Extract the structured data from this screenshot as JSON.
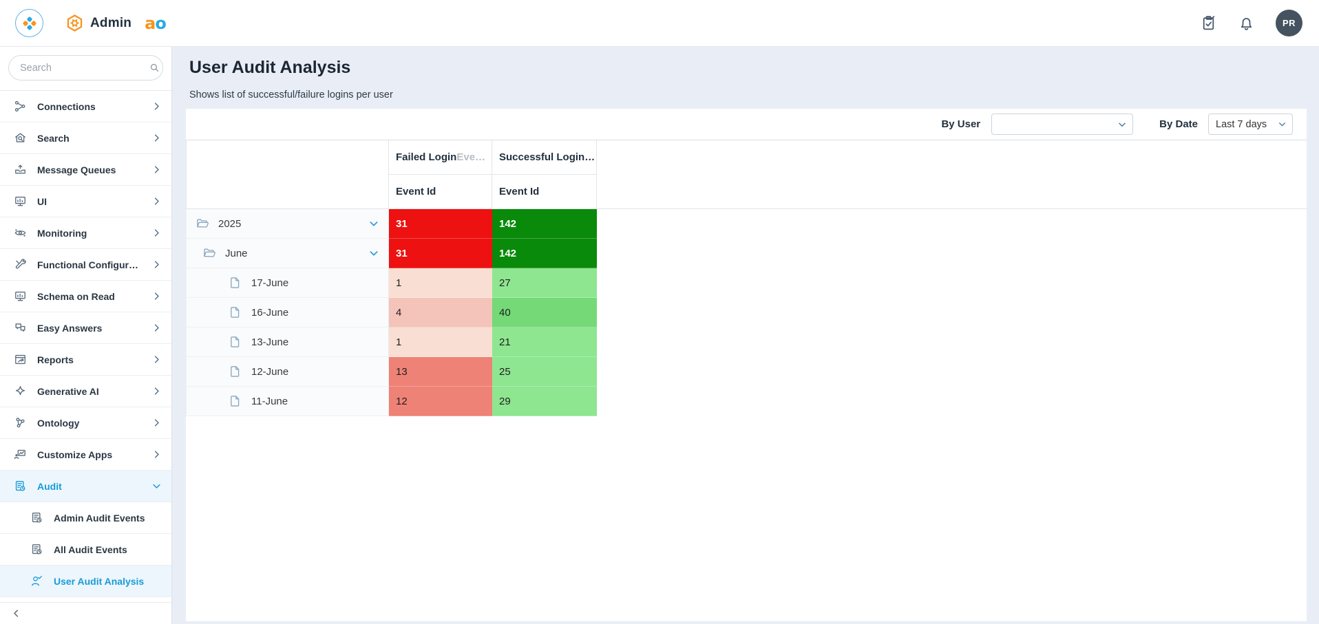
{
  "topbar": {
    "app_label": "Admin",
    "logo_letter_a": "a",
    "logo_letter_o": "o",
    "avatar_initials": "PR"
  },
  "sidebar": {
    "search_placeholder": "Search",
    "items": [
      {
        "label": "Connections",
        "icon": "connections"
      },
      {
        "label": "Search",
        "icon": "search-nav"
      },
      {
        "label": "Message Queues",
        "icon": "message-queues"
      },
      {
        "label": "UI",
        "icon": "ui"
      },
      {
        "label": "Monitoring",
        "icon": "monitoring"
      },
      {
        "label": "Functional Configurati...",
        "icon": "functional-config"
      },
      {
        "label": "Schema on Read",
        "icon": "schema"
      },
      {
        "label": "Easy Answers",
        "icon": "easy-answers"
      },
      {
        "label": "Reports",
        "icon": "reports"
      },
      {
        "label": "Generative AI",
        "icon": "generative-ai"
      },
      {
        "label": "Ontology",
        "icon": "ontology"
      },
      {
        "label": "Customize Apps",
        "icon": "customize-apps"
      },
      {
        "label": "Audit",
        "icon": "audit",
        "active": true,
        "expanded": true
      }
    ],
    "audit_children": [
      {
        "label": "Admin Audit Events",
        "icon": "audit"
      },
      {
        "label": "All Audit Events",
        "icon": "audit"
      },
      {
        "label": "User Audit Analysis",
        "icon": "user-check",
        "active": true
      }
    ]
  },
  "page": {
    "title": "User Audit Analysis",
    "subtitle": "Shows list of successful/failure logins per user"
  },
  "filters": {
    "by_user_label": "By User",
    "by_user_value": "",
    "by_date_label": "By Date",
    "by_date_value": "Last 7 days"
  },
  "table": {
    "col_failed_header": "Failed Login ",
    "col_failed_header_truncated": "Eve…",
    "col_success_header": "Successful Login…",
    "sub_header_failed": "Event Id",
    "sub_header_success": "Event Id",
    "rows": [
      {
        "label": "2025",
        "level": 0,
        "node": "folder",
        "expanded": true,
        "failed": "31",
        "success": "142",
        "failed_bg": "#ed1111",
        "success_bg": "#0a8a0a",
        "text_color": "#ffffff",
        "bold": true
      },
      {
        "label": "June",
        "level": 1,
        "node": "folder",
        "expanded": true,
        "failed": "31",
        "success": "142",
        "failed_bg": "#ed1111",
        "success_bg": "#0a8a0a",
        "text_color": "#ffffff",
        "bold": true
      },
      {
        "label": "17-June",
        "level": 2,
        "node": "file",
        "expanded": false,
        "failed": "1",
        "success": "27",
        "failed_bg": "#f9ded3",
        "success_bg": "#8ee690",
        "text_color": "#1f1f1f",
        "bold": false
      },
      {
        "label": "16-June",
        "level": 2,
        "node": "file",
        "expanded": false,
        "failed": "4",
        "success": "40",
        "failed_bg": "#f4c3ba",
        "success_bg": "#74d976",
        "text_color": "#1f1f1f",
        "bold": false
      },
      {
        "label": "13-June",
        "level": 2,
        "node": "file",
        "expanded": false,
        "failed": "1",
        "success": "21",
        "failed_bg": "#f9ded3",
        "success_bg": "#8ee690",
        "text_color": "#1f1f1f",
        "bold": false
      },
      {
        "label": "12-June",
        "level": 2,
        "node": "file",
        "expanded": false,
        "failed": "13",
        "success": "25",
        "failed_bg": "#ee8276",
        "success_bg": "#8ee690",
        "text_color": "#1f1f1f",
        "bold": false
      },
      {
        "label": "11-June",
        "level": 2,
        "node": "file",
        "expanded": false,
        "failed": "12",
        "success": "29",
        "failed_bg": "#ee8276",
        "success_bg": "#8ee690",
        "text_color": "#1f1f1f",
        "bold": false
      }
    ]
  },
  "colors": {
    "accent_blue": "#189bd7",
    "brand_orange": "#f7941e",
    "brand_blue": "#29abe2",
    "parent_failed_red": "#ed1111",
    "parent_success_green": "#0a8a0a"
  }
}
